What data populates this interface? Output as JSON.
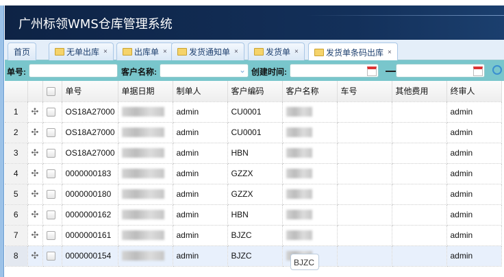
{
  "app": {
    "title": "广州标领WMS仓库管理系统"
  },
  "tabs": [
    {
      "label": "首页",
      "icon": "none",
      "closable": false
    },
    {
      "label": "无单出库",
      "icon": "folder-icon",
      "closable": true
    },
    {
      "label": "出库单",
      "icon": "folder-icon",
      "closable": true
    },
    {
      "label": "发货通知单",
      "icon": "folder-icon",
      "closable": true
    },
    {
      "label": "发货单",
      "icon": "folder-icon",
      "closable": true
    },
    {
      "label": "发货单条码出库",
      "icon": "folder-icon",
      "closable": true,
      "active": true
    }
  ],
  "close_glyph": "×",
  "filter": {
    "order_no_label": "单号:",
    "order_no_value": "",
    "customer_label": "客户名称:",
    "customer_value": "",
    "created_label": "创建时间:",
    "date_from": "",
    "date_to": ""
  },
  "table": {
    "columns": [
      "单号",
      "单据日期",
      "制单人",
      "客户编码",
      "客户名称",
      "车号",
      "其他费用",
      "终审人"
    ],
    "rows": [
      {
        "n": "1",
        "no": "OS18A27000",
        "maker": "admin",
        "code": "CU0001",
        "car": "",
        "fee": "",
        "auditor": "admin"
      },
      {
        "n": "2",
        "no": "OS18A27000",
        "maker": "admin",
        "code": "CU0001",
        "car": "",
        "fee": "",
        "auditor": "admin"
      },
      {
        "n": "3",
        "no": "OS18A27000",
        "maker": "admin",
        "code": "HBN",
        "car": "",
        "fee": "",
        "auditor": "admin"
      },
      {
        "n": "4",
        "no": "0000000183",
        "maker": "admin",
        "code": "GZZX",
        "car": "",
        "fee": "",
        "auditor": "admin"
      },
      {
        "n": "5",
        "no": "0000000180",
        "maker": "admin",
        "code": "GZZX",
        "car": "",
        "fee": "",
        "auditor": "admin"
      },
      {
        "n": "6",
        "no": "0000000162",
        "maker": "admin",
        "code": "HBN",
        "car": "",
        "fee": "",
        "auditor": "admin"
      },
      {
        "n": "7",
        "no": "0000000161",
        "maker": "admin",
        "code": "BJZC",
        "car": "",
        "fee": "",
        "auditor": "admin"
      },
      {
        "n": "8",
        "no": "0000000154",
        "maker": "admin",
        "code": "BJZC",
        "car": "",
        "fee": "",
        "auditor": "admin",
        "selected": true
      }
    ]
  },
  "tooltip": "BJZC",
  "colors": {
    "header": "#13305a",
    "filter_bar": "#79c6cc",
    "selected_row": "#e8f0fc"
  }
}
